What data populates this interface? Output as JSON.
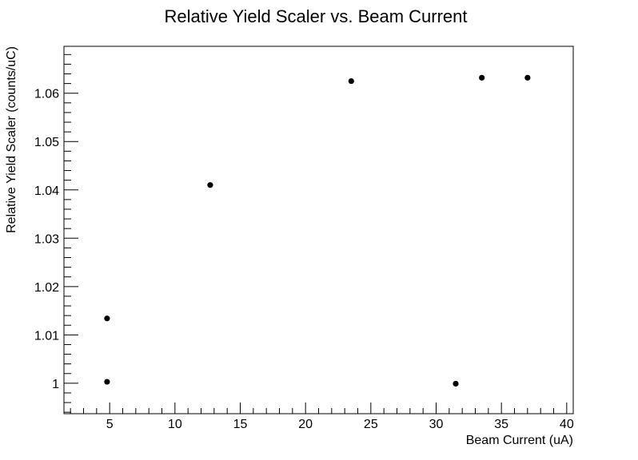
{
  "chart_data": {
    "type": "scatter",
    "title": "Relative Yield Scaler vs. Beam Current",
    "xlabel": "Beam Current (uA)",
    "ylabel": "Relative Yield Scaler (counts/uC)",
    "xlim": [
      1.5,
      40.5
    ],
    "ylim": [
      0.9937,
      1.0697
    ],
    "xticks": [
      5,
      10,
      15,
      20,
      25,
      30,
      35,
      40
    ],
    "yticks": [
      1,
      1.01,
      1.02,
      1.03,
      1.04,
      1.05,
      1.06
    ],
    "ytick_labels": [
      "1",
      "1.01",
      "1.02",
      "1.03",
      "1.04",
      "1.05",
      "1.06"
    ],
    "grid": false,
    "series": [
      {
        "points": [
          {
            "x": 4.8,
            "y": 1.0003
          },
          {
            "x": 4.8,
            "y": 1.0134
          },
          {
            "x": 12.7,
            "y": 1.041
          },
          {
            "x": 23.5,
            "y": 1.0625
          },
          {
            "x": 31.5,
            "y": 0.9999
          },
          {
            "x": 33.5,
            "y": 1.0632
          },
          {
            "x": 37.0,
            "y": 1.0632
          }
        ]
      }
    ]
  }
}
